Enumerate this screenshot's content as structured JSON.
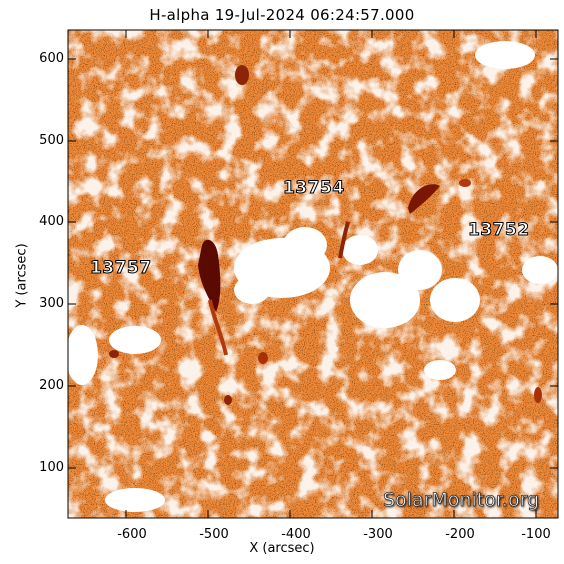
{
  "title": "H-alpha 19-Jul-2024 06:24:57.000",
  "x_axis": {
    "label": "X (arcsec)",
    "ticks": [
      "-600",
      "-500",
      "-400",
      "-300",
      "-200",
      "-100"
    ]
  },
  "y_axis": {
    "label": "Y (arcsec)",
    "ticks": [
      "600",
      "500",
      "400",
      "300",
      "200",
      "100"
    ]
  },
  "active_regions": [
    "13754",
    "13752",
    "13757"
  ],
  "watermark": "SolarMonitor.org",
  "colors": {
    "background": "#ffffff",
    "chromosphere": "#f08a3c",
    "filament": "#5a0a00"
  }
}
